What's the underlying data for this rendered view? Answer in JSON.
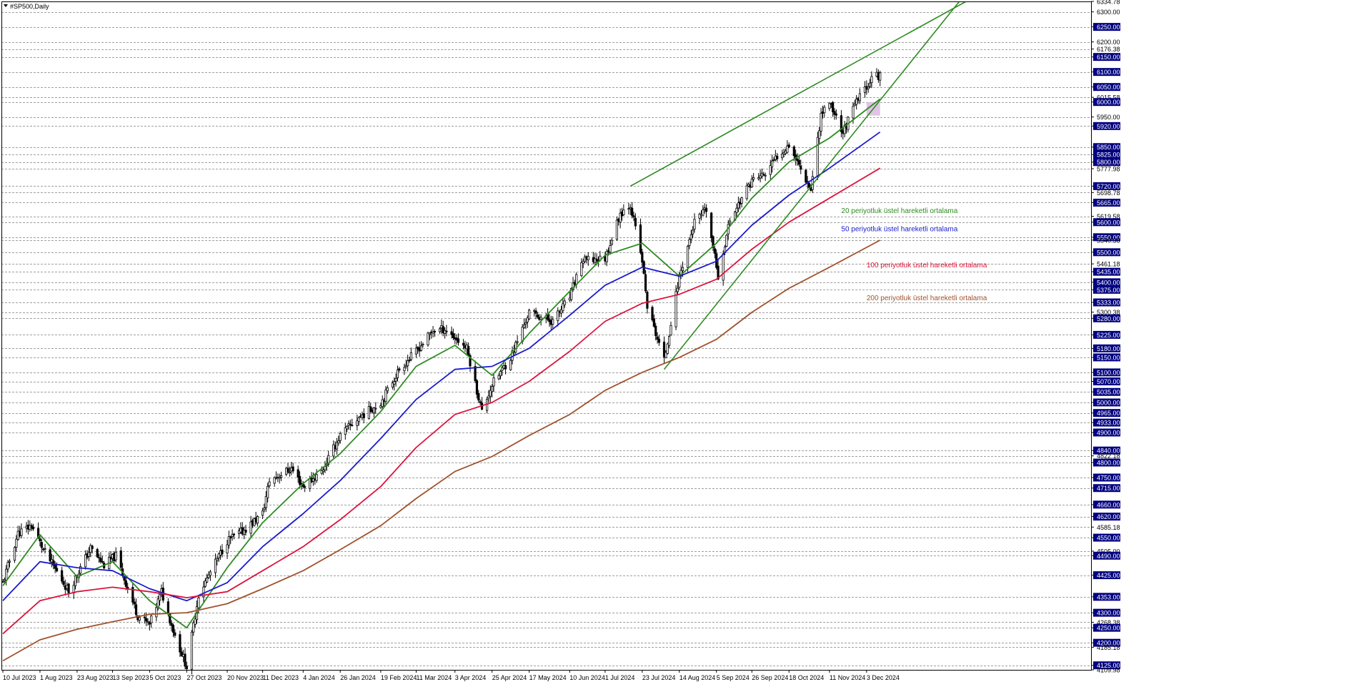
{
  "window": {
    "title": "#SP500,Daily",
    "menu_icon": "triangle-down-icon"
  },
  "chart_data": {
    "type": "candlestick",
    "symbol": "#SP500",
    "timeframe": "Daily",
    "grid": true,
    "ylim": [
      4109.98,
      6334.78
    ],
    "y_ticks": [
      {
        "value": 6334.78,
        "label": "6334.78",
        "highlight": false
      },
      {
        "value": 6300.0,
        "label": "6300.00",
        "highlight": false
      },
      {
        "value": 6250.0,
        "label": "6250.00",
        "highlight": true
      },
      {
        "value": 6200.0,
        "label": "6200.00",
        "highlight": false
      },
      {
        "value": 6176.38,
        "label": "6176.38",
        "highlight": false
      },
      {
        "value": 6150.0,
        "label": "6150.00",
        "highlight": true
      },
      {
        "value": 6100.0,
        "label": "6100.00",
        "highlight": true
      },
      {
        "value": 6050.0,
        "label": "6050.00",
        "highlight": true
      },
      {
        "value": 6015.58,
        "label": "6015.58",
        "highlight": false
      },
      {
        "value": 6000.0,
        "label": "6000.00",
        "highlight": true
      },
      {
        "value": 5950.0,
        "label": "5950.00",
        "highlight": false
      },
      {
        "value": 5920.0,
        "label": "5920.00",
        "highlight": true
      },
      {
        "value": 5850.0,
        "label": "5850.00",
        "highlight": true
      },
      {
        "value": 5825.0,
        "label": "5825.00",
        "highlight": true
      },
      {
        "value": 5800.0,
        "label": "5800.00",
        "highlight": true
      },
      {
        "value": 5777.98,
        "label": "5777.98",
        "highlight": false
      },
      {
        "value": 5720.0,
        "label": "5720.00",
        "highlight": true
      },
      {
        "value": 5698.78,
        "label": "5698.78",
        "highlight": false
      },
      {
        "value": 5665.0,
        "label": "5665.00",
        "highlight": true
      },
      {
        "value": 5619.58,
        "label": "5619.58",
        "highlight": false
      },
      {
        "value": 5600.0,
        "label": "5600.00",
        "highlight": true
      },
      {
        "value": 5550.0,
        "label": "5550.00",
        "highlight": true
      },
      {
        "value": 5540.38,
        "label": "5540.38",
        "highlight": false
      },
      {
        "value": 5500.0,
        "label": "5500.00",
        "highlight": true
      },
      {
        "value": 5461.18,
        "label": "5461.18",
        "highlight": false
      },
      {
        "value": 5435.0,
        "label": "5435.00",
        "highlight": true
      },
      {
        "value": 5400.0,
        "label": "5400.00",
        "highlight": true
      },
      {
        "value": 5375.0,
        "label": "5375.00",
        "highlight": true
      },
      {
        "value": 5333.0,
        "label": "5333.00",
        "highlight": true
      },
      {
        "value": 5300.38,
        "label": "5300.38",
        "highlight": false
      },
      {
        "value": 5280.0,
        "label": "5280.00",
        "highlight": true
      },
      {
        "value": 5225.0,
        "label": "5225.00",
        "highlight": true
      },
      {
        "value": 5180.0,
        "label": "5180.00",
        "highlight": true
      },
      {
        "value": 5150.0,
        "label": "5150.00",
        "highlight": true
      },
      {
        "value": 5100.0,
        "label": "5100.00",
        "highlight": true
      },
      {
        "value": 5070.0,
        "label": "5070.00",
        "highlight": true
      },
      {
        "value": 5035.0,
        "label": "5035.00",
        "highlight": true
      },
      {
        "value": 5000.0,
        "label": "5000.00",
        "highlight": true
      },
      {
        "value": 4965.0,
        "label": "4965.00",
        "highlight": true
      },
      {
        "value": 4933.0,
        "label": "4933.00",
        "highlight": true
      },
      {
        "value": 4900.0,
        "label": "4900.00",
        "highlight": true
      },
      {
        "value": 4840.0,
        "label": "4840.00",
        "highlight": true
      },
      {
        "value": 4822.18,
        "label": "4822.18",
        "highlight": false
      },
      {
        "value": 4800.0,
        "label": "4800.00",
        "highlight": true
      },
      {
        "value": 4750.0,
        "label": "4750.00",
        "highlight": true
      },
      {
        "value": 4715.0,
        "label": "4715.00",
        "highlight": true
      },
      {
        "value": 4660.0,
        "label": "4660.00",
        "highlight": true
      },
      {
        "value": 4620.0,
        "label": "4620.00",
        "highlight": true
      },
      {
        "value": 4585.18,
        "label": "4585.18",
        "highlight": false
      },
      {
        "value": 4550.0,
        "label": "4550.00",
        "highlight": true
      },
      {
        "value": 4505.0,
        "label": "4505.00",
        "highlight": false
      },
      {
        "value": 4490.0,
        "label": "4490.00",
        "highlight": true
      },
      {
        "value": 4425.0,
        "label": "4425.00",
        "highlight": true
      },
      {
        "value": 4353.0,
        "label": "4353.00",
        "highlight": true
      },
      {
        "value": 4300.0,
        "label": "4300.00",
        "highlight": true
      },
      {
        "value": 4268.38,
        "label": "4268.38",
        "highlight": false
      },
      {
        "value": 4250.0,
        "label": "4250.00",
        "highlight": true
      },
      {
        "value": 4200.0,
        "label": "4200.00",
        "highlight": true
      },
      {
        "value": 4185.18,
        "label": "4185.18",
        "highlight": false
      },
      {
        "value": 4125.0,
        "label": "4125.00",
        "highlight": true
      },
      {
        "value": 4109.98,
        "label": "4109.98",
        "highlight": false
      }
    ],
    "x_labels": [
      "10 Jul 2023",
      "1 Aug 2023",
      "23 Aug 2023",
      "13 Sep 2023",
      "5 Oct 2023",
      "27 Oct 2023",
      "20 Nov 2023",
      "11 Dec 2023",
      "4 Jan 2024",
      "26 Jan 2024",
      "19 Feb 2024",
      "11 Mar 2024",
      "3 Apr 2024",
      "25 Apr 2024",
      "17 May 2024",
      "10 Jun 2024",
      "1 Jul 2024",
      "23 Jul 2024",
      "14 Aug 2024",
      "5 Sep 2024",
      "26 Sep 2024",
      "18 Oct 2024",
      "11 Nov 2024",
      "3 Dec 2024"
    ],
    "price_path": [
      [
        "10 Jul 2023",
        4400
      ],
      [
        "19 Jul 2023",
        4565
      ],
      [
        "27 Jul 2023",
        4590
      ],
      [
        "3 Aug 2023",
        4510
      ],
      [
        "18 Aug 2023",
        4372
      ],
      [
        "31 Aug 2023",
        4515
      ],
      [
        "8 Sep 2023",
        4458
      ],
      [
        "15 Sep 2023",
        4490
      ],
      [
        "28 Sep 2023",
        4290
      ],
      [
        "5 Oct 2023",
        4260
      ],
      [
        "12 Oct 2023",
        4370
      ],
      [
        "20 Oct 2023",
        4225
      ],
      [
        "27 Oct 2023",
        4120
      ],
      [
        "3 Nov 2023",
        4360
      ],
      [
        "20 Nov 2023",
        4540
      ],
      [
        "30 Nov 2023",
        4575
      ],
      [
        "11 Dec 2023",
        4630
      ],
      [
        "15 Dec 2023",
        4740
      ],
      [
        "28 Dec 2023",
        4780
      ],
      [
        "4 Jan 2024",
        4720
      ],
      [
        "15 Jan 2024",
        4770
      ],
      [
        "26 Jan 2024",
        4890
      ],
      [
        "6 Feb 2024",
        4950
      ],
      [
        "19 Feb 2024",
        5000
      ],
      [
        "1 Mar 2024",
        5110
      ],
      [
        "11 Mar 2024",
        5170
      ],
      [
        "21 Mar 2024",
        5240
      ],
      [
        "28 Mar 2024",
        5245
      ],
      [
        "10 Apr 2024",
        5180
      ],
      [
        "19 Apr 2024",
        4970
      ],
      [
        "25 Apr 2024",
        5060
      ],
      [
        "6 May 2024",
        5150
      ],
      [
        "17 May 2024",
        5300
      ],
      [
        "31 May 2024",
        5270
      ],
      [
        "10 Jun 2024",
        5350
      ],
      [
        "17 Jun 2024",
        5470
      ],
      [
        "1 Jul 2024",
        5480
      ],
      [
        "10 Jul 2024",
        5630
      ],
      [
        "16 Jul 2024",
        5660
      ],
      [
        "23 Jul 2024",
        5470
      ],
      [
        "26 Jul 2024",
        5320
      ],
      [
        "5 Aug 2024",
        5140
      ],
      [
        "14 Aug 2024",
        5420
      ],
      [
        "23 Aug 2024",
        5600
      ],
      [
        "30 Aug 2024",
        5640
      ],
      [
        "6 Sep 2024",
        5420
      ],
      [
        "13 Sep 2024",
        5610
      ],
      [
        "26 Sep 2024",
        5740
      ],
      [
        "4 Oct 2024",
        5760
      ],
      [
        "11 Oct 2024",
        5820
      ],
      [
        "18 Oct 2024",
        5860
      ],
      [
        "31 Oct 2024",
        5710
      ],
      [
        "6 Nov 2024",
        5960
      ],
      [
        "11 Nov 2024",
        6000
      ],
      [
        "19 Nov 2024",
        5900
      ],
      [
        "27 Nov 2024",
        6000
      ],
      [
        "6 Dec 2024",
        6080
      ],
      [
        "11 Dec 2024",
        6090
      ]
    ],
    "series": [
      {
        "name": "20 periyotluk üstel hareketli ortalama",
        "color": "#2e8b22",
        "points": [
          [
            "10 Jul 2023",
            4390
          ],
          [
            "1 Aug 2023",
            4560
          ],
          [
            "23 Aug 2023",
            4420
          ],
          [
            "13 Sep 2023",
            4470
          ],
          [
            "5 Oct 2023",
            4340
          ],
          [
            "27 Oct 2023",
            4250
          ],
          [
            "20 Nov 2023",
            4450
          ],
          [
            "11 Dec 2023",
            4600
          ],
          [
            "4 Jan 2024",
            4730
          ],
          [
            "26 Jan 2024",
            4830
          ],
          [
            "19 Feb 2024",
            4970
          ],
          [
            "11 Mar 2024",
            5120
          ],
          [
            "3 Apr 2024",
            5190
          ],
          [
            "25 Apr 2024",
            5090
          ],
          [
            "17 May 2024",
            5230
          ],
          [
            "10 Jun 2024",
            5370
          ],
          [
            "1 Jul 2024",
            5490
          ],
          [
            "23 Jul 2024",
            5530
          ],
          [
            "14 Aug 2024",
            5420
          ],
          [
            "5 Sep 2024",
            5530
          ],
          [
            "26 Sep 2024",
            5680
          ],
          [
            "18 Oct 2024",
            5800
          ],
          [
            "11 Nov 2024",
            5880
          ],
          [
            "11 Dec 2024",
            6010
          ]
        ]
      },
      {
        "name": "50 periyotluk üstel hareketli ortalama",
        "color": "#1a1acd",
        "points": [
          [
            "10 Jul 2023",
            4340
          ],
          [
            "1 Aug 2023",
            4470
          ],
          [
            "23 Aug 2023",
            4450
          ],
          [
            "13 Sep 2023",
            4440
          ],
          [
            "5 Oct 2023",
            4380
          ],
          [
            "27 Oct 2023",
            4340
          ],
          [
            "20 Nov 2023",
            4400
          ],
          [
            "11 Dec 2023",
            4520
          ],
          [
            "4 Jan 2024",
            4630
          ],
          [
            "26 Jan 2024",
            4740
          ],
          [
            "19 Feb 2024",
            4880
          ],
          [
            "11 Mar 2024",
            5010
          ],
          [
            "3 Apr 2024",
            5110
          ],
          [
            "25 Apr 2024",
            5120
          ],
          [
            "17 May 2024",
            5180
          ],
          [
            "10 Jun 2024",
            5290
          ],
          [
            "1 Jul 2024",
            5390
          ],
          [
            "23 Jul 2024",
            5450
          ],
          [
            "14 Aug 2024",
            5420
          ],
          [
            "5 Sep 2024",
            5470
          ],
          [
            "26 Sep 2024",
            5590
          ],
          [
            "18 Oct 2024",
            5690
          ],
          [
            "11 Nov 2024",
            5780
          ],
          [
            "11 Dec 2024",
            5900
          ]
        ]
      },
      {
        "name": "100 periyotluk üstel hareketli ortalama",
        "color": "#dc143c",
        "points": [
          [
            "10 Jul 2023",
            4230
          ],
          [
            "1 Aug 2023",
            4340
          ],
          [
            "23 Aug 2023",
            4370
          ],
          [
            "13 Sep 2023",
            4385
          ],
          [
            "5 Oct 2023",
            4370
          ],
          [
            "27 Oct 2023",
            4350
          ],
          [
            "20 Nov 2023",
            4370
          ],
          [
            "11 Dec 2023",
            4440
          ],
          [
            "4 Jan 2024",
            4520
          ],
          [
            "26 Jan 2024",
            4610
          ],
          [
            "19 Feb 2024",
            4720
          ],
          [
            "11 Mar 2024",
            4850
          ],
          [
            "3 Apr 2024",
            4960
          ],
          [
            "25 Apr 2024",
            5000
          ],
          [
            "17 May 2024",
            5070
          ],
          [
            "10 Jun 2024",
            5170
          ],
          [
            "1 Jul 2024",
            5270
          ],
          [
            "23 Jul 2024",
            5330
          ],
          [
            "14 Aug 2024",
            5360
          ],
          [
            "5 Sep 2024",
            5410
          ],
          [
            "26 Sep 2024",
            5510
          ],
          [
            "18 Oct 2024",
            5600
          ],
          [
            "11 Nov 2024",
            5680
          ],
          [
            "11 Dec 2024",
            5780
          ]
        ]
      },
      {
        "name": "200 periyotluk üstel hareketli ortalama",
        "color": "#a0522d",
        "points": [
          [
            "10 Jul 2023",
            4140
          ],
          [
            "1 Aug 2023",
            4210
          ],
          [
            "23 Aug 2023",
            4245
          ],
          [
            "13 Sep 2023",
            4270
          ],
          [
            "5 Oct 2023",
            4295
          ],
          [
            "27 Oct 2023",
            4300
          ],
          [
            "20 Nov 2023",
            4330
          ],
          [
            "11 Dec 2023",
            4380
          ],
          [
            "4 Jan 2024",
            4440
          ],
          [
            "26 Jan 2024",
            4510
          ],
          [
            "19 Feb 2024",
            4590
          ],
          [
            "11 Mar 2024",
            4680
          ],
          [
            "3 Apr 2024",
            4770
          ],
          [
            "25 Apr 2024",
            4820
          ],
          [
            "17 May 2024",
            4890
          ],
          [
            "10 Jun 2024",
            4960
          ],
          [
            "1 Jul 2024",
            5040
          ],
          [
            "23 Jul 2024",
            5100
          ],
          [
            "14 Aug 2024",
            5150
          ],
          [
            "5 Sep 2024",
            5210
          ],
          [
            "26 Sep 2024",
            5300
          ],
          [
            "18 Oct 2024",
            5380
          ],
          [
            "11 Nov 2024",
            5450
          ],
          [
            "11 Dec 2024",
            5540
          ]
        ]
      }
    ],
    "trendlines": [
      {
        "color": "#2e8b22",
        "from": [
          "16 Jul 2024",
          5720
        ],
        "to": [
          "31 Jan 2025",
          6334.78
        ]
      },
      {
        "color": "#2e8b22",
        "from": [
          "5 Aug 2024",
          5110
        ],
        "to": [
          "27 Jan 2025",
          6334.78
        ]
      }
    ],
    "highlight_zone": {
      "color": "#dcb8e0",
      "from": "3 Dec 2024",
      "to": "11 Dec 2024",
      "y": [
        5955,
        6000
      ]
    },
    "annotations": [
      {
        "text": "20 periyotluk üstel hareketli ortalama",
        "color": "#2e8b22",
        "x": "18 Nov 2024",
        "y": 5630
      },
      {
        "text": "50 periyotluk üstel hareketli ortalama",
        "color": "#1a1acd",
        "x": "18 Nov 2024",
        "y": 5570
      },
      {
        "text": "100 periyotluk üstel hareketli ortalama",
        "color": "#dc143c",
        "x": "3 Dec 2024",
        "y": 5450
      },
      {
        "text": "200 periyotluk üstel hareketli ortalama",
        "color": "#a0522d",
        "x": "3 Dec 2024",
        "y": 5340
      }
    ]
  }
}
